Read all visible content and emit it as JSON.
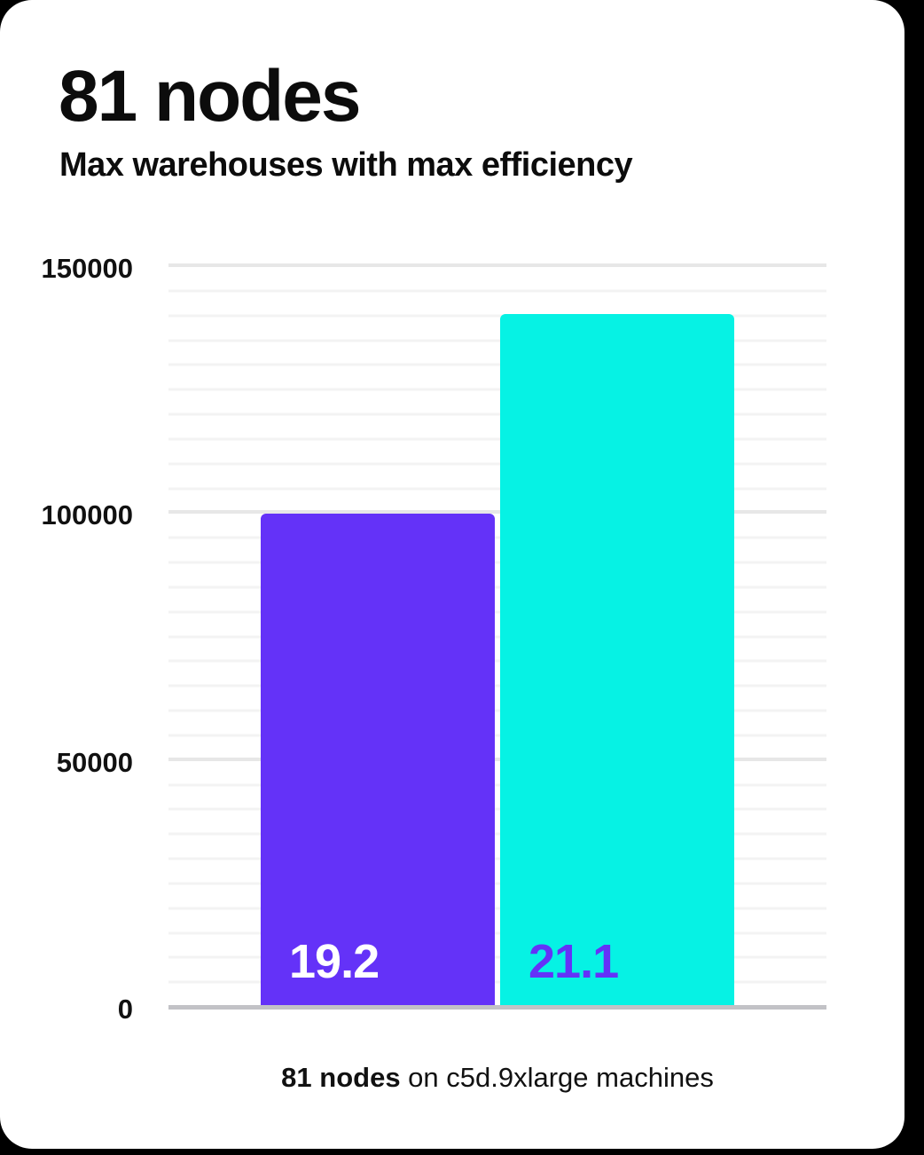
{
  "page": {
    "background_color": "#000000",
    "card_color": "#ffffff"
  },
  "chart_data": {
    "type": "bar",
    "title": "81 nodes",
    "subtitle": "Max warehouses with max efficiency",
    "bars": [
      {
        "name": "bar-1",
        "value": 99500,
        "data_label": "19.2",
        "color": "#6432f8",
        "label_color": "#ffffff"
      },
      {
        "name": "bar-2",
        "value": 140000,
        "data_label": "21.1",
        "color": "#06f2e4",
        "label_color": "#6432f8"
      }
    ],
    "ylim": [
      0,
      150000
    ],
    "yticks": [
      0,
      50000,
      100000,
      150000
    ],
    "minor_gridline_step": 5000,
    "grid": true,
    "legend": null,
    "xlabel": "",
    "ylabel": "",
    "caption": {
      "bold": "81 nodes",
      "rest": " on c5d.9xlarge machines"
    },
    "colors": {
      "minor_gridline": "#f3f3f3",
      "major_gridline": "#e7e7e7",
      "baseline": "#c2c2c6",
      "text": "#0c0c0c"
    }
  }
}
